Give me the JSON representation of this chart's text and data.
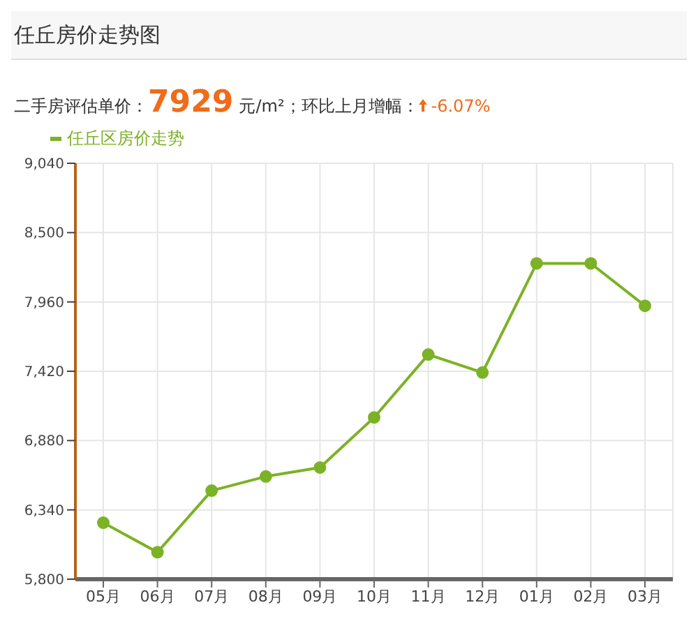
{
  "chart_data": {
    "type": "line",
    "title": "任丘房价走势图",
    "annotations": [
      "二手房评估单价：",
      "7929",
      "元/m²；环比上月增幅：",
      "-6.07%"
    ],
    "categories": [
      "05月",
      "06月",
      "07月",
      "08月",
      "09月",
      "10月",
      "11月",
      "12月",
      "01月",
      "02月",
      "03月"
    ],
    "series": [
      {
        "name": "任丘区房价走势",
        "color": "#7cb226",
        "values": [
          6240,
          6010,
          6490,
          6600,
          6670,
          7060,
          7550,
          7410,
          8260,
          8260,
          7930
        ]
      }
    ],
    "ylim": [
      5800,
      9040
    ],
    "yticks": [
      {
        "value": 5800,
        "label": "5,800"
      },
      {
        "value": 6340,
        "label": "6,340"
      },
      {
        "value": 6880,
        "label": "6,880"
      },
      {
        "value": 7420,
        "label": "7,420"
      },
      {
        "value": 7960,
        "label": "7,960"
      },
      {
        "value": 8500,
        "label": "8,500"
      },
      {
        "value": 9040,
        "label": "9,040"
      }
    ],
    "grid": true,
    "legend": "top left",
    "marker": "circle",
    "line_style": "solid"
  }
}
